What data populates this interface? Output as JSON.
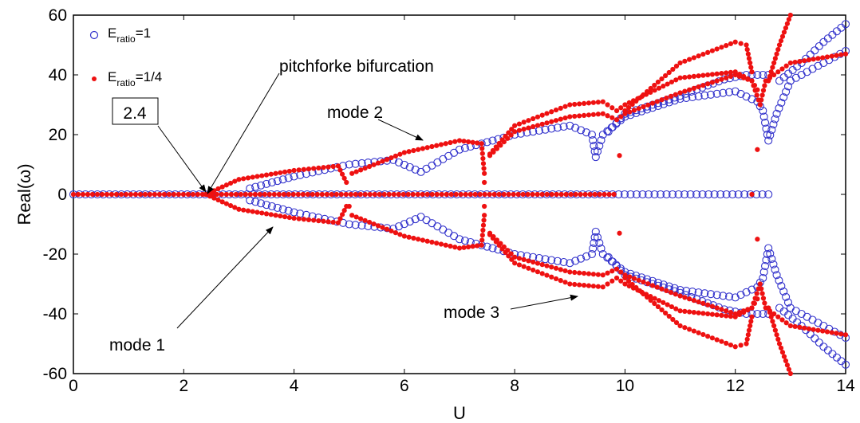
{
  "chart_data": {
    "type": "scatter",
    "title": "",
    "xlabel": "U",
    "ylabel": "Real(ω)",
    "xlim": [
      0,
      14
    ],
    "ylim": [
      -60,
      60
    ],
    "xticks": [
      "0",
      "2",
      "4",
      "6",
      "8",
      "10",
      "12",
      "14"
    ],
    "yticks": [
      "60",
      "40",
      "20",
      "0",
      "-20",
      "-40",
      "-60"
    ],
    "grid": false,
    "legend_position": "top-left",
    "legend": [
      {
        "base": "E",
        "sub": "ratio",
        "suffix": "=1",
        "marker": "open-circle",
        "color": "#3333cc"
      },
      {
        "base": "E",
        "sub": "ratio",
        "suffix": "=1/4",
        "marker": "filled-dot",
        "color": "#ee1111"
      }
    ],
    "annotations": [
      {
        "text": "pitchforke bifurcation",
        "boxed": false
      },
      {
        "text": "2.4",
        "boxed": true
      },
      {
        "text": "mode 2",
        "boxed": false
      },
      {
        "text": "mode 1",
        "boxed": false
      },
      {
        "text": "mode 3",
        "boxed": false
      }
    ],
    "bifurcation_point": 2.4,
    "series": [
      {
        "label": "E_ratio=1",
        "marker": "open-circle",
        "color": "#3333cc",
        "zero_branch_range": [
          0,
          12.6
        ],
        "branches": [
          {
            "points": [
              [
                3.2,
                2
              ],
              [
                4,
                6
              ],
              [
                5,
                10
              ],
              [
                5.8,
                11.5
              ],
              [
                6.3,
                7.5
              ],
              [
                7,
                15
              ],
              [
                8,
                20
              ],
              [
                9,
                23
              ],
              [
                9.4,
                20
              ],
              [
                9.47,
                12.5
              ],
              [
                9.6,
                20
              ],
              [
                10,
                26
              ],
              [
                11,
                32
              ],
              [
                12,
                34.5
              ],
              [
                12.4,
                31
              ],
              [
                12.5,
                28
              ],
              [
                12.6,
                18
              ],
              [
                12.75,
                27
              ],
              [
                13,
                38
              ],
              [
                13.5,
                43
              ],
              [
                14,
                48
              ]
            ]
          },
          {
            "points": [
              [
                9.7,
                21
              ],
              [
                10,
                27
              ],
              [
                11,
                33
              ],
              [
                11.8,
                38.5
              ],
              [
                12.2,
                40
              ],
              [
                12.6,
                40
              ]
            ]
          },
          {
            "points": [
              [
                12.8,
                38
              ],
              [
                13.2,
                44
              ],
              [
                13.6,
                51
              ],
              [
                14,
                57
              ]
            ]
          },
          {
            "points": [
              [
                3.2,
                -2
              ],
              [
                4,
                -6
              ],
              [
                5,
                -10
              ],
              [
                5.8,
                -11.5
              ],
              [
                6.3,
                -7.5
              ],
              [
                7,
                -15
              ],
              [
                8,
                -20
              ],
              [
                9,
                -23
              ],
              [
                9.4,
                -20
              ],
              [
                9.47,
                -12.5
              ],
              [
                9.6,
                -20
              ],
              [
                10,
                -26
              ],
              [
                11,
                -32
              ],
              [
                12,
                -34.5
              ],
              [
                12.4,
                -31
              ],
              [
                12.5,
                -28
              ],
              [
                12.6,
                -18
              ],
              [
                12.75,
                -27
              ],
              [
                13,
                -38
              ],
              [
                13.5,
                -43
              ],
              [
                14,
                -48
              ]
            ]
          },
          {
            "points": [
              [
                9.7,
                -21
              ],
              [
                10,
                -27
              ],
              [
                11,
                -33
              ],
              [
                11.8,
                -38.5
              ],
              [
                12.2,
                -40
              ],
              [
                12.6,
                -40
              ]
            ]
          },
          {
            "points": [
              [
                12.8,
                -38
              ],
              [
                13.2,
                -44
              ],
              [
                13.6,
                -51
              ],
              [
                14,
                -57
              ]
            ]
          }
        ]
      },
      {
        "label": "E_ratio=1/4",
        "marker": "filled-dot",
        "color": "#ee1111",
        "zero_branch_range": [
          0,
          9.8
        ],
        "branches": [
          {
            "points": [
              [
                2.4,
                0
              ],
              [
                3,
                5
              ],
              [
                4,
                8
              ],
              [
                4.8,
                9.5
              ],
              [
                4.95,
                4
              ]
            ]
          },
          {
            "points": [
              [
                5.05,
                7
              ],
              [
                6,
                14
              ],
              [
                7,
                18
              ],
              [
                7.4,
                17
              ],
              [
                7.45,
                7
              ]
            ]
          },
          {
            "points": [
              [
                7.55,
                13
              ],
              [
                8,
                21
              ],
              [
                9,
                26
              ],
              [
                9.6,
                27
              ],
              [
                9.85,
                25
              ],
              [
                10,
                27
              ],
              [
                11,
                34
              ],
              [
                12,
                40
              ],
              [
                12.3,
                38
              ],
              [
                12.45,
                30
              ],
              [
                12.55,
                38
              ],
              [
                13,
                44
              ],
              [
                14,
                47
              ]
            ]
          },
          {
            "points": [
              [
                7.55,
                13.5
              ],
              [
                8,
                23
              ],
              [
                9,
                30
              ],
              [
                9.6,
                31
              ],
              [
                9.85,
                28
              ],
              [
                10,
                30
              ],
              [
                11,
                39
              ],
              [
                12,
                41
              ],
              [
                12.3,
                38
              ],
              [
                12.4,
                35
              ]
            ]
          },
          {
            "points": [
              [
                10,
                28
              ],
              [
                11,
                44
              ],
              [
                12,
                51
              ],
              [
                12.2,
                50
              ],
              [
                12.3,
                41
              ]
            ]
          },
          {
            "points": [
              [
                12.6,
                38
              ],
              [
                12.8,
                50
              ],
              [
                13,
                60
              ]
            ]
          },
          {
            "points": [
              [
                2.4,
                0
              ],
              [
                3,
                -5
              ],
              [
                4,
                -8
              ],
              [
                4.8,
                -9.5
              ],
              [
                4.95,
                -4
              ]
            ]
          },
          {
            "points": [
              [
                5.05,
                -7
              ],
              [
                6,
                -14
              ],
              [
                7,
                -18
              ],
              [
                7.4,
                -17
              ],
              [
                7.45,
                -7
              ]
            ]
          },
          {
            "points": [
              [
                7.55,
                -13
              ],
              [
                8,
                -21
              ],
              [
                9,
                -26
              ],
              [
                9.6,
                -27
              ],
              [
                9.85,
                -25
              ],
              [
                10,
                -27
              ],
              [
                11,
                -34
              ],
              [
                12,
                -40
              ],
              [
                12.3,
                -38
              ],
              [
                12.45,
                -30
              ],
              [
                12.55,
                -38
              ],
              [
                13,
                -44
              ],
              [
                14,
                -47
              ]
            ]
          },
          {
            "points": [
              [
                7.55,
                -13.5
              ],
              [
                8,
                -23
              ],
              [
                9,
                -30
              ],
              [
                9.6,
                -31
              ],
              [
                9.85,
                -28
              ],
              [
                10,
                -30
              ],
              [
                11,
                -39
              ],
              [
                12,
                -41
              ],
              [
                12.3,
                -38
              ],
              [
                12.4,
                -35
              ]
            ]
          },
          {
            "points": [
              [
                10,
                -28
              ],
              [
                11,
                -44
              ],
              [
                12,
                -51
              ],
              [
                12.2,
                -50
              ],
              [
                12.3,
                -41
              ]
            ]
          },
          {
            "points": [
              [
                12.6,
                -38
              ],
              [
                12.8,
                -50
              ],
              [
                13,
                -60
              ]
            ]
          }
        ],
        "isolated_points": [
          [
            5,
            -4
          ],
          [
            7.45,
            4
          ],
          [
            7.45,
            -4
          ],
          [
            9.9,
            13
          ],
          [
            9.9,
            -13
          ],
          [
            12.3,
            0
          ],
          [
            12.4,
            15
          ],
          [
            12.4,
            -15
          ]
        ]
      }
    ]
  }
}
